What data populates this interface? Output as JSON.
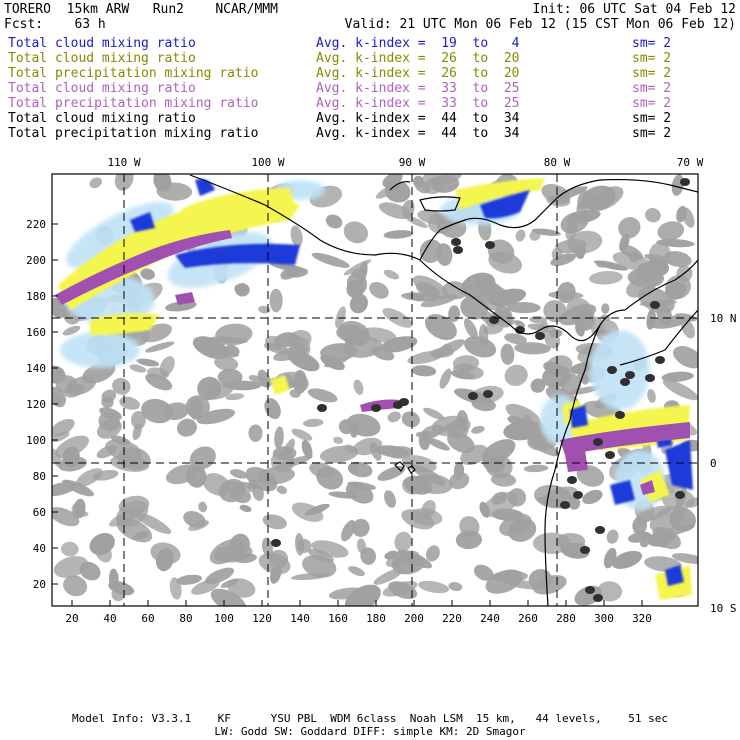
{
  "header": {
    "left_line1": "TORERO  15km ARW   Run2    NCAR/MMM",
    "left_line2": "Fcst:    63 h",
    "init": "Init: 06 UTC Sat 04 Feb 12",
    "valid": "Valid: 21 UTC Mon 06 Feb 12 (15 CST Mon 06 Feb 12)"
  },
  "legend": [
    {
      "name": "Total cloud mixing ratio",
      "avg": "Avg. k-index =  19  to   4",
      "sm": "sm= 2",
      "color": "#1a1acc"
    },
    {
      "name": "Total cloud mixing ratio",
      "avg": "Avg. k-index =  26  to  20",
      "sm": "sm= 2",
      "color": "#8a8a00"
    },
    {
      "name": "Total precipitation mixing ratio",
      "avg": "Avg. k-index =  26  to  20",
      "sm": "sm= 2",
      "color": "#8a8a00"
    },
    {
      "name": "Total cloud mixing ratio",
      "avg": "Avg. k-index =  33  to  25",
      "sm": "sm= 2",
      "color": "#b060c0"
    },
    {
      "name": "Total precipitation mixing ratio",
      "avg": "Avg. k-index =  33  to  25",
      "sm": "sm= 2",
      "color": "#b060c0"
    },
    {
      "name": "Total cloud mixing ratio",
      "avg": "Avg. k-index =  44  to  34",
      "sm": "sm= 2",
      "color": "#000000"
    },
    {
      "name": "Total precipitation mixing ratio",
      "avg": "Avg. k-index =  44  to  34",
      "sm": "sm= 2",
      "color": "#000000"
    }
  ],
  "map": {
    "lon_labels": [
      "110 W",
      "100 W",
      "90 W",
      "80 W",
      "70 W"
    ],
    "lat_labels": [
      "10 N",
      "0",
      "10 S"
    ],
    "y_ticks": [
      "220",
      "200",
      "180",
      "160",
      "140",
      "120",
      "100",
      "80",
      "60",
      "40",
      "20"
    ],
    "x_ticks": [
      "20",
      "40",
      "60",
      "80",
      "100",
      "120",
      "140",
      "160",
      "180",
      "200",
      "220",
      "240",
      "260",
      "280",
      "300",
      "320"
    ],
    "colors": {
      "gray": "#a0a0a0",
      "dark": "#303030",
      "yellow": "#f5f550",
      "magenta": "#a050b0",
      "blue": "#1a3ad8",
      "light_blue": "#bfe3f7"
    }
  },
  "footer": {
    "line1": "Model Info: V3.3.1    KF      YSU PBL  WDM 6class  Noah LSM  15 km,   44 levels,    51 sec",
    "line2": "LW: Godd SW: Goddard DIFF: simple KM: 2D Smagor"
  }
}
